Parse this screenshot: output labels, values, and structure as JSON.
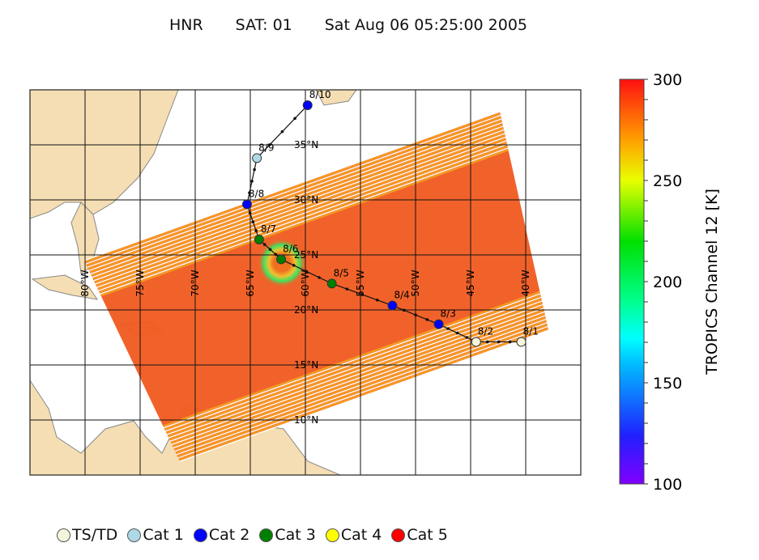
{
  "title": {
    "product": "HNR",
    "satellite": "SAT: 01",
    "datetime": "Sat Aug 06 05:25:00 2005"
  },
  "map": {
    "lon_range": [
      -85,
      -35
    ],
    "lat_range": [
      5,
      40
    ],
    "lon_labels": [
      "80°W",
      "75°W",
      "70°W",
      "65°W",
      "60°W",
      "55°W",
      "50°W",
      "45°W",
      "40°W"
    ],
    "lon_values": [
      -80,
      -75,
      -70,
      -65,
      -60,
      -55,
      -50,
      -45,
      -40
    ],
    "lat_labels": [
      "35°N",
      "30°N",
      "25°N",
      "20°N",
      "15°N",
      "10°N"
    ],
    "lat_values": [
      35,
      30,
      25,
      20,
      15,
      10
    ],
    "land_color": "#f5deb3",
    "swath_color": "#f05a20",
    "swath_edge_color": "#f59a20"
  },
  "track": [
    {
      "label": "8/1",
      "lon": -40.4,
      "lat": 17.1,
      "category": "TS/TD"
    },
    {
      "label": "8/2",
      "lon": -44.5,
      "lat": 17.1,
      "category": "TS/TD"
    },
    {
      "label": "8/3",
      "lon": -47.9,
      "lat": 18.7,
      "category": "Cat 2"
    },
    {
      "label": "8/4",
      "lon": -52.1,
      "lat": 20.4,
      "category": "Cat 2"
    },
    {
      "label": "8/5",
      "lon": -57.6,
      "lat": 22.4,
      "category": "Cat 3"
    },
    {
      "label": "8/6",
      "lon": -62.2,
      "lat": 24.6,
      "category": "Cat 3"
    },
    {
      "label": "8/7",
      "lon": -64.2,
      "lat": 26.4,
      "category": "Cat 3"
    },
    {
      "label": "8/8",
      "lon": -65.3,
      "lat": 29.6,
      "category": "Cat 2"
    },
    {
      "label": "8/9",
      "lon": -64.4,
      "lat": 33.8,
      "category": "Cat 1"
    },
    {
      "label": "8/10",
      "lon": -59.8,
      "lat": 38.6,
      "category": "Cat 2"
    }
  ],
  "colorbar": {
    "label": "TROPICS Channel 12 [K]",
    "min": 100,
    "max": 300,
    "tick_labels": [
      "300",
      "250",
      "200",
      "150",
      "100"
    ],
    "tick_values": [
      300,
      250,
      200,
      150,
      100
    ],
    "colormap": "rainbow"
  },
  "legend": [
    {
      "label": "TS/TD",
      "color": "#f5f5dc"
    },
    {
      "label": "Cat 1",
      "color": "#add8e6"
    },
    {
      "label": "Cat 2",
      "color": "#0000ff"
    },
    {
      "label": "Cat 3",
      "color": "#008000"
    },
    {
      "label": "Cat 4",
      "color": "#ffff00"
    },
    {
      "label": "Cat 5",
      "color": "#ff0000"
    }
  ]
}
